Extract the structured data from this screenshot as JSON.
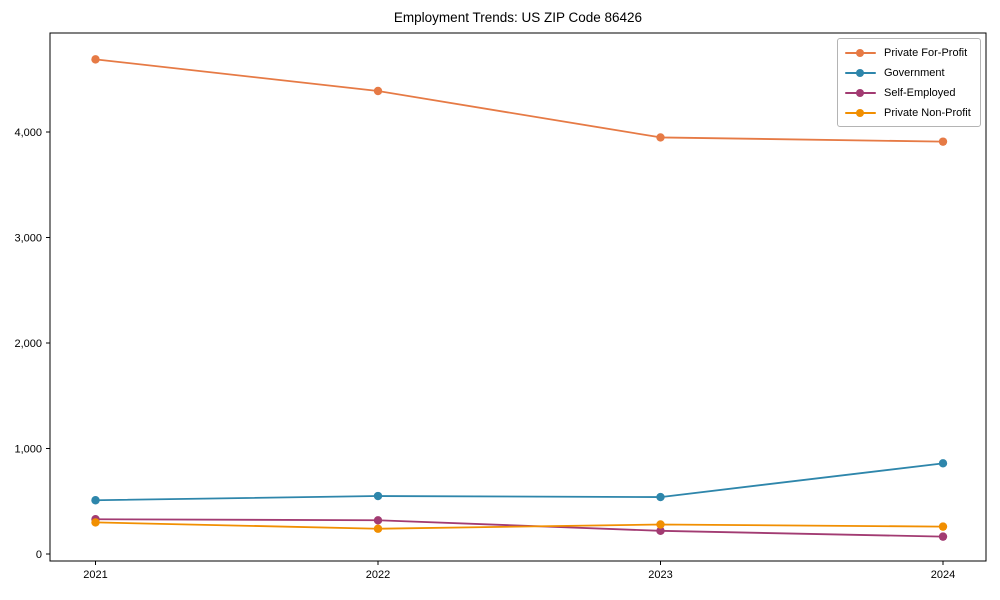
{
  "chart_data": {
    "type": "line",
    "title": "Employment Trends: US ZIP Code 86426",
    "categories": [
      "2021",
      "2022",
      "2023",
      "2024"
    ],
    "series": [
      {
        "name": "Private For-Profit",
        "color": "#e67a45",
        "values": [
          4690,
          4390,
          3950,
          3910
        ]
      },
      {
        "name": "Government",
        "color": "#2e86ab",
        "values": [
          510,
          550,
          540,
          860
        ]
      },
      {
        "name": "Self-Employed",
        "color": "#a23b72",
        "values": [
          330,
          320,
          220,
          165
        ]
      },
      {
        "name": "Private Non-Profit",
        "color": "#f18f01",
        "values": [
          300,
          240,
          280,
          260
        ]
      }
    ],
    "xlabel": "",
    "ylabel": "",
    "yticks": [
      0,
      1000,
      2000,
      3000,
      4000
    ],
    "ytick_labels": [
      "0",
      "1,000",
      "2,000",
      "3,000",
      "4,000"
    ],
    "ylim": [
      -66,
      4940
    ],
    "grid": false,
    "legend_position": "upper right",
    "marker": "circle",
    "axis_color": "#000000",
    "background": "#ffffff"
  }
}
